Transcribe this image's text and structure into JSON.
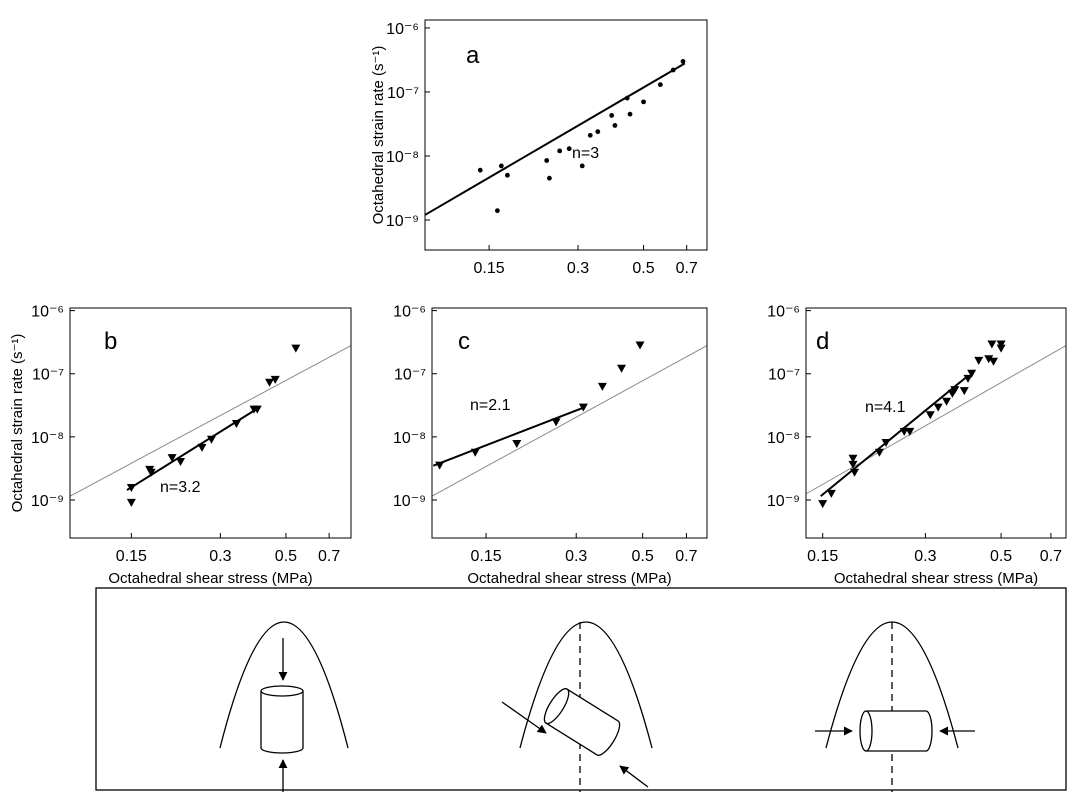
{
  "chart_data": [
    {
      "type": "scatter",
      "panel_label": "a",
      "annotation": "n=3",
      "y_label": "Octahedral strain rate (s⁻¹)",
      "x_log": true,
      "y_log": true,
      "marker": "dot",
      "color": "#000000",
      "xlim": [
        0.091,
        0.82
      ],
      "ylim": [
        3.4e-10,
        1.33e-06
      ],
      "xticks": [
        0.15,
        0.3,
        0.5,
        0.7
      ],
      "yticks": [
        {
          "value": 1e-09,
          "label": "10⁻⁹"
        },
        {
          "value": 1e-08,
          "label": "10⁻⁸"
        },
        {
          "value": 1e-07,
          "label": "10⁻⁷"
        },
        {
          "value": 1e-06,
          "label": "10⁻⁶"
        }
      ],
      "x": [
        0.14,
        0.16,
        0.165,
        0.173,
        0.235,
        0.24,
        0.26,
        0.28,
        0.31,
        0.33,
        0.35,
        0.39,
        0.4,
        0.44,
        0.45,
        0.5,
        0.57,
        0.63,
        0.68
      ],
      "values": [
        6e-09,
        1.4e-09,
        7e-09,
        5e-09,
        8.5e-09,
        4.5e-09,
        1.2e-08,
        1.3e-08,
        7e-09,
        2.1e-08,
        2.4e-08,
        4.3e-08,
        3e-08,
        8e-08,
        4.5e-08,
        7e-08,
        1.3e-07,
        2.2e-07,
        3e-07
      ],
      "fit": {
        "x": [
          0.091,
          0.69
        ],
        "values": [
          1.2e-09,
          2.8e-07
        ]
      }
    },
    {
      "type": "scatter",
      "panel_label": "b",
      "annotation": "n=3.2",
      "y_label": "Octahedral strain rate (s⁻¹)",
      "x_label": "Octahedral shear stress (MPa)",
      "x_log": true,
      "y_log": true,
      "marker": "triangle",
      "color": "#000000",
      "xlim": [
        0.093,
        0.83
      ],
      "ylim": [
        2.5e-10,
        1.1e-06
      ],
      "xticks": [
        0.15,
        0.3,
        0.5,
        0.7
      ],
      "yticks": [
        {
          "value": 1e-09,
          "label": "10⁻⁹"
        },
        {
          "value": 1e-08,
          "label": "10⁻⁸"
        },
        {
          "value": 1e-07,
          "label": "10⁻⁷"
        },
        {
          "value": 1e-06,
          "label": "10⁻⁶"
        }
      ],
      "x": [
        0.15,
        0.15,
        0.173,
        0.175,
        0.206,
        0.22,
        0.26,
        0.28,
        0.34,
        0.39,
        0.4,
        0.44,
        0.46,
        0.54
      ],
      "values": [
        1.55e-09,
        9e-10,
        3e-09,
        2.7e-09,
        4.6e-09,
        4e-09,
        6.7e-09,
        9e-09,
        1.6e-08,
        2.7e-08,
        2.7e-08,
        7.2e-08,
        8e-08,
        2.5e-07
      ],
      "fit": {
        "x": [
          0.145,
          0.4
        ],
        "values": [
          1.44e-09,
          2.8e-08
        ]
      },
      "reference": {
        "x": [
          0.093,
          0.83
        ],
        "values": [
          1.15e-09,
          2.8e-07
        ]
      }
    },
    {
      "type": "scatter",
      "panel_label": "c",
      "annotation": "n=2.1",
      "x_label": "Octahedral shear stress (MPa)",
      "x_log": true,
      "y_log": true,
      "marker": "triangle",
      "color": "#000000",
      "xlim": [
        0.099,
        0.82
      ],
      "ylim": [
        2.5e-10,
        1.1e-06
      ],
      "xticks": [
        0.15,
        0.3,
        0.5,
        0.7
      ],
      "yticks": [
        {
          "value": 1e-09,
          "label": "10⁻⁹"
        },
        {
          "value": 1e-08,
          "label": "10⁻⁸"
        },
        {
          "value": 1e-07,
          "label": "10⁻⁷"
        },
        {
          "value": 1e-06,
          "label": "10⁻⁶"
        }
      ],
      "x": [
        0.105,
        0.138,
        0.19,
        0.257,
        0.317,
        0.367,
        0.425,
        0.49
      ],
      "values": [
        3.5e-09,
        5.6e-09,
        7.7e-09,
        1.7e-08,
        2.9e-08,
        6.2e-08,
        1.2e-07,
        2.8e-07
      ],
      "fit": {
        "x": [
          0.1,
          0.317
        ],
        "values": [
          3.5e-09,
          2.9e-08
        ]
      },
      "reference": {
        "x": [
          0.099,
          0.82
        ],
        "values": [
          1.15e-09,
          2.8e-07
        ]
      }
    },
    {
      "type": "scatter",
      "panel_label": "d",
      "annotation": "n=4.1",
      "x_label": "Octahedral shear stress (MPa)",
      "x_log": true,
      "y_log": true,
      "marker": "triangle",
      "color": "#000000",
      "xlim": [
        0.134,
        0.775
      ],
      "ylim": [
        2.5e-10,
        1.1e-06
      ],
      "xticks": [
        0.15,
        0.3,
        0.5,
        0.7
      ],
      "yticks": [
        {
          "value": 1e-09,
          "label": "10⁻⁹"
        },
        {
          "value": 1e-08,
          "label": "10⁻⁸"
        },
        {
          "value": 1e-07,
          "label": "10⁻⁷"
        },
        {
          "value": 1e-06,
          "label": "10⁻⁶"
        }
      ],
      "x": [
        0.15,
        0.159,
        0.184,
        0.184,
        0.186,
        0.22,
        0.23,
        0.26,
        0.27,
        0.31,
        0.327,
        0.346,
        0.36,
        0.366,
        0.39,
        0.4,
        0.41,
        0.43,
        0.46,
        0.475,
        0.47,
        0.5,
        0.5
      ],
      "values": [
        8.6e-10,
        1.25e-09,
        4.5e-09,
        3.6e-09,
        2.7e-09,
        5.6e-09,
        8e-09,
        1.2e-08,
        1.2e-08,
        2.2e-08,
        2.9e-08,
        3.6e-08,
        4.8e-08,
        5.5e-08,
        5.3e-08,
        8.3e-08,
        1e-07,
        1.6e-07,
        1.7e-07,
        1.55e-07,
        2.9e-07,
        2.5e-07,
        2.9e-07
      ],
      "fit": {
        "x": [
          0.148,
          0.4
        ],
        "values": [
          1.15e-09,
          9.3e-08
        ]
      },
      "reference": {
        "x": [
          0.134,
          0.775
        ],
        "values": [
          1.25e-09,
          2.8e-07
        ]
      }
    }
  ]
}
